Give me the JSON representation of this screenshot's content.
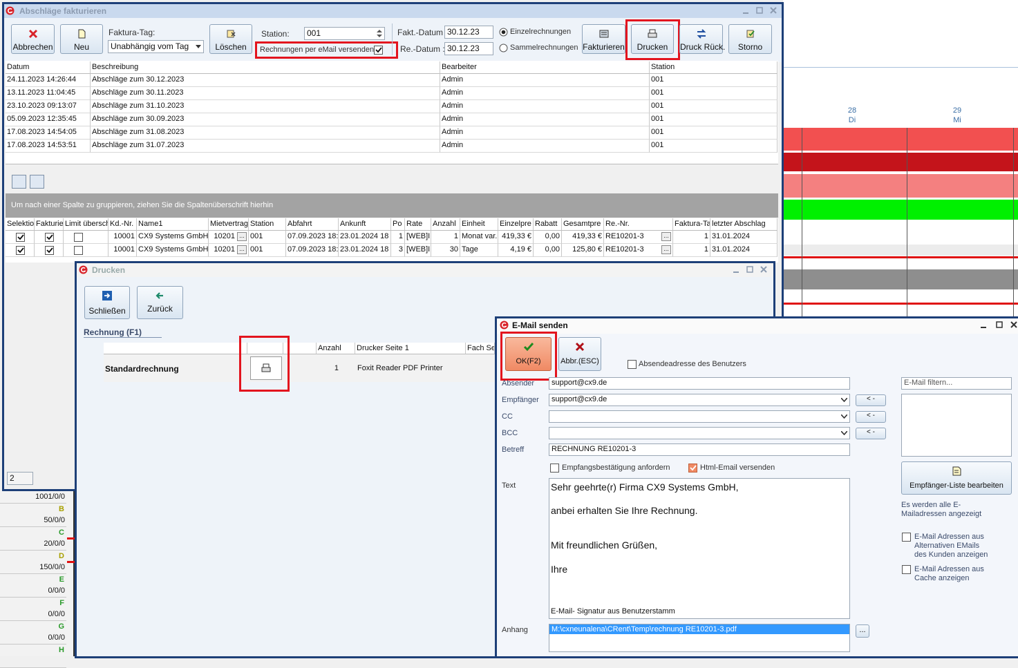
{
  "background": {
    "calendar_days": [
      {
        "day": "28",
        "weekday": "Di"
      },
      {
        "day": "29",
        "weekday": "Mi"
      }
    ],
    "resources": [
      {
        "value": "1001/0/0"
      },
      {
        "letter": "B",
        "value": "50/0/0"
      },
      {
        "letter": "C",
        "value": "20/0/0"
      },
      {
        "letter": "D",
        "value": "150/0/0"
      },
      {
        "letter": "E",
        "value": "0/0/0"
      },
      {
        "letter": "F",
        "value": "0/0/0"
      },
      {
        "letter": "G",
        "value": "0/0/0"
      },
      {
        "letter": "H"
      }
    ]
  },
  "main_window": {
    "title": "Abschläge fakturieren",
    "toolbar": {
      "abbrechen": "Abbrechen",
      "neu": "Neu",
      "faktura_tag_label": "Faktura-Tag:",
      "faktura_tag_value": "Unabhängig vom Tag",
      "loeschen": "Löschen",
      "station_label": "Station:",
      "station_value": "001",
      "email_checkbox": "Rechnungen per eMail versenden",
      "fakt_datum_label": "Fakt.-Datum :",
      "fakt_datum_value": "30.12.23",
      "re_datum_label": "Re.-Datum :",
      "re_datum_value": "30.12.23",
      "einzel": "Einzelrechnungen",
      "sammel": "Sammelrechnungen",
      "fakturieren": "Fakturieren",
      "drucken": "Drucken",
      "druck_rueck": "Druck Rück.",
      "storno": "Storno"
    },
    "table1": {
      "columns": [
        "Datum",
        "Beschreibung",
        "Bearbeiter",
        "Station"
      ],
      "rows": [
        [
          "24.11.2023 14:26:44",
          "Abschläge zum 30.12.2023",
          "Admin",
          "001"
        ],
        [
          "13.11.2023 11:04:45",
          "Abschläge zum 30.11.2023",
          "Admin",
          "001"
        ],
        [
          "23.10.2023 09:13:07",
          "Abschläge zum 31.10.2023",
          "Admin",
          "001"
        ],
        [
          "05.09.2023 12:35:45",
          "Abschläge zum 30.09.2023",
          "Admin",
          "001"
        ],
        [
          "17.08.2023 14:54:05",
          "Abschläge zum 31.08.2023",
          "Admin",
          "001"
        ],
        [
          "17.08.2023 14:53:51",
          "Abschläge zum 31.07.2023",
          "Admin",
          "001"
        ]
      ]
    },
    "group_hint": "Um nach einer Spalte zu gruppieren, ziehen Sie die Spaltenüberschrift hierhin",
    "table2": {
      "columns": [
        "Selektio",
        "Fakturie",
        "Limit übersch",
        "Kd.-Nr.",
        "Name1",
        "Mietvertrag",
        "Station",
        "Abfahrt",
        "Ankunft",
        "Po",
        "Rate",
        "Anzahl",
        "Einheit",
        "Einzelpre",
        "Rabatt",
        "Gesamtpre",
        "Re.-Nr.",
        "Faktura-Ta",
        "letzter Abschlag"
      ],
      "ellipsis": "...",
      "rows": [
        {
          "checks": [
            true,
            true,
            false
          ],
          "cells": [
            "10001",
            "CX9 Systems GmbH",
            "10201",
            "001",
            "07.09.2023 18:",
            "23.01.2024 18",
            "1",
            "[WEB]I",
            "1",
            "Monat var.",
            "419,33 €",
            "0,00",
            "419,33 €",
            "RE10201-3",
            "1",
            "31.01.2024"
          ]
        },
        {
          "checks": [
            true,
            true,
            false
          ],
          "cells": [
            "10001",
            "CX9 Systems GmbH",
            "10201",
            "001",
            "07.09.2023 18:",
            "23.01.2024 18",
            "3",
            "[WEB]I",
            "30",
            "Tage",
            "4,19 €",
            "0,00",
            "125,80 €",
            "RE10201-3",
            "1",
            "31.01.2024"
          ]
        }
      ]
    },
    "footer_count": "2"
  },
  "print_window": {
    "title": "Drucken",
    "close": "Schließen",
    "back": "Zurück",
    "section": "Rechnung (F1)",
    "columns": [
      "Anzahl",
      "Drucker Seite 1",
      "Fach Se"
    ],
    "row": {
      "name": "Standardrechnung",
      "count": "1",
      "printer": "Foxit Reader PDF Printer"
    }
  },
  "email_window": {
    "title": "E-Mail senden",
    "ok": "OK(F2)",
    "cancel": "Abbr.(ESC)",
    "sender_checkbox": "Absendeadresse des Benutzers",
    "arrow_button": "< -",
    "fields": [
      {
        "label": "Absender",
        "value": "support@cx9.de"
      },
      {
        "label": "Empfänger",
        "value": "support@cx9.de",
        "dropdown": true
      },
      {
        "label": "CC",
        "dropdown": true
      },
      {
        "label": "BCC",
        "dropdown": true
      },
      {
        "label": "Betreff",
        "value": "RECHNUNG RE10201-3"
      }
    ],
    "receipt_checkbox": "Empfangsbestätigung anfordern",
    "html_checkbox": "Html-Email versenden",
    "text_label": "Text",
    "body": [
      "Sehr geehrte(r) Firma CX9 Systems GmbH,",
      "anbei erhalten Sie Ihre Rechnung.",
      "Mit freundlichen Grüßen,",
      "Ihre"
    ],
    "signature": "E-Mail- Signatur aus Benutzerstamm",
    "attachment_label": "Anhang",
    "attachment": "M:\\cxneunalena\\CRent\\Temp\\rechnung RE10201-3.pdf",
    "ellipsis": "...",
    "filter_placeholder": "E-Mail filtern...",
    "edit_list": "Empfänger-Liste bearbeiten",
    "list_note": "Es werden alle E-Mailadressen angezeigt",
    "option_alt": "E-Mail Adressen aus Alternativen EMails des Kunden anzeigen",
    "option_cache": "E-Mail Adressen aus Cache anzeigen"
  }
}
